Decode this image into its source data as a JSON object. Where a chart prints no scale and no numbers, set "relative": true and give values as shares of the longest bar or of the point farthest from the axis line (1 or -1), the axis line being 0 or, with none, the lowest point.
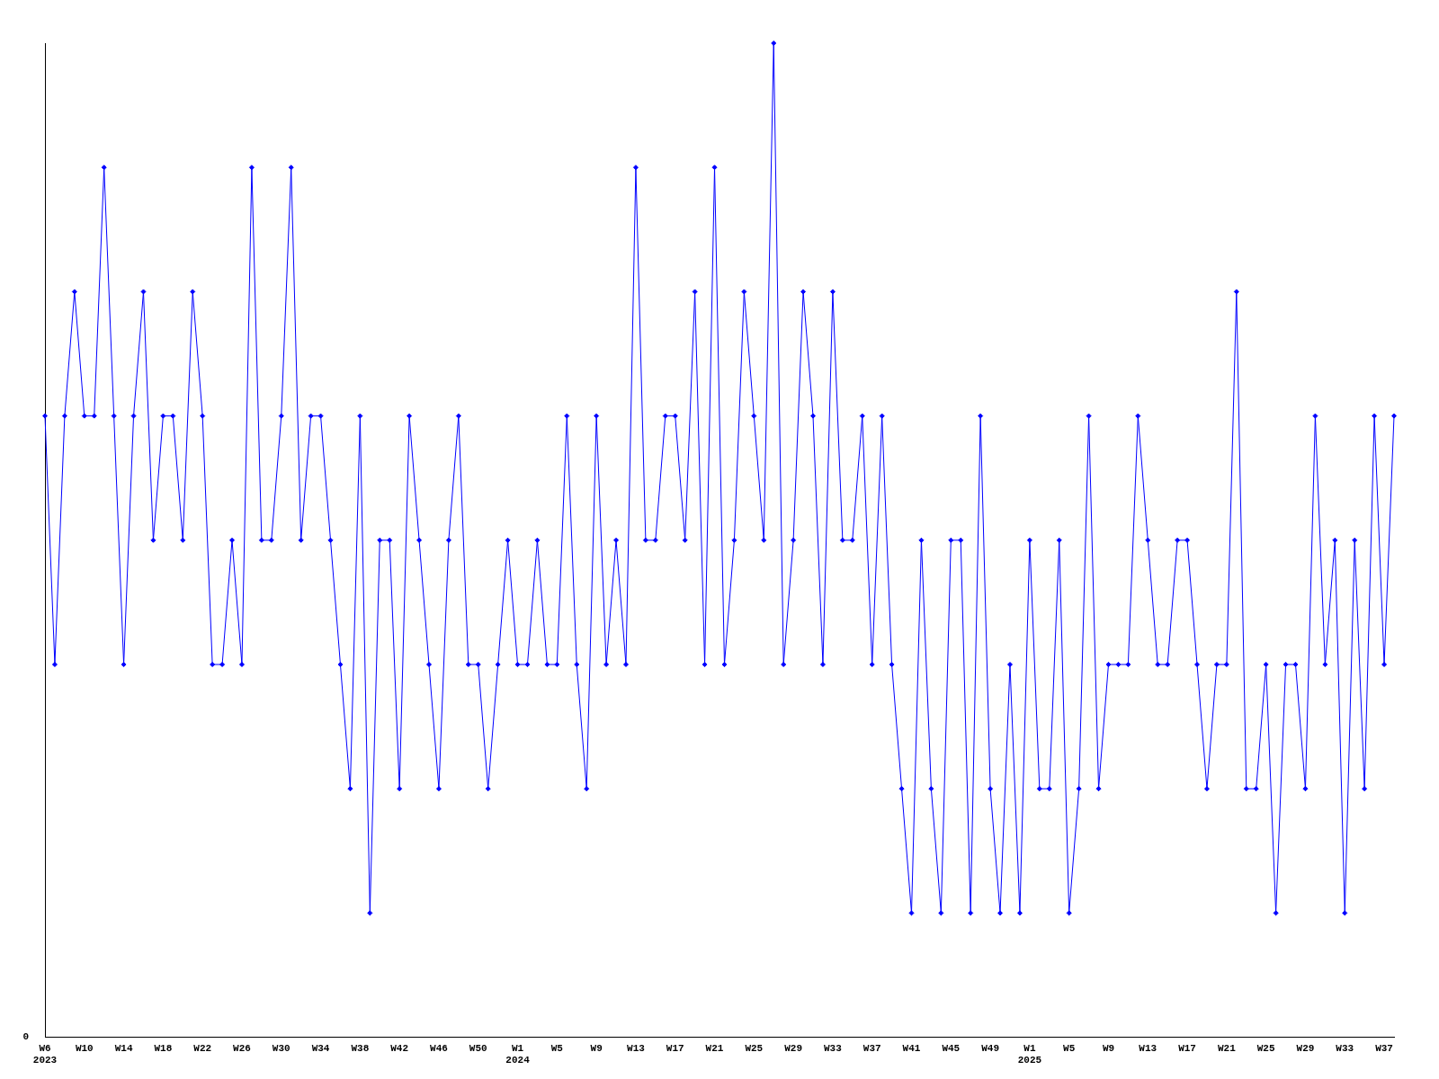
{
  "chart_data": {
    "type": "line",
    "relative": true,
    "marker": "diamond",
    "line_style": "solid",
    "grid": false,
    "legend": false,
    "annotations": [
      "0"
    ],
    "categories": [
      "W6\n2023",
      null,
      null,
      null,
      "W10",
      null,
      null,
      null,
      "W14",
      null,
      null,
      null,
      "W18",
      null,
      null,
      null,
      "W22",
      null,
      null,
      null,
      "W26",
      null,
      null,
      null,
      "W30",
      null,
      null,
      null,
      "W34",
      null,
      null,
      null,
      "W38",
      null,
      null,
      null,
      "W42",
      null,
      null,
      null,
      "W46",
      null,
      null,
      null,
      "W50",
      null,
      null,
      null,
      "W1\n2024",
      null,
      null,
      null,
      "W5",
      null,
      null,
      null,
      "W9",
      null,
      null,
      null,
      "W13",
      null,
      null,
      null,
      "W17",
      null,
      null,
      null,
      "W21",
      null,
      null,
      null,
      "W25",
      null,
      null,
      null,
      "W29",
      null,
      null,
      null,
      "W33",
      null,
      null,
      null,
      "W37",
      null,
      null,
      null,
      "W41",
      null,
      null,
      null,
      "W45",
      null,
      null,
      null,
      "W49",
      null,
      null,
      null,
      "W1\n2025",
      null,
      null,
      null,
      "W5",
      null,
      null,
      null,
      "W9",
      null,
      null,
      null,
      "W13",
      null,
      null,
      null,
      "W17",
      null,
      null,
      null,
      "W21",
      null,
      null,
      null,
      "W25",
      null,
      null,
      null,
      "W29",
      null,
      null,
      null,
      "W33",
      null,
      null,
      null,
      "W37",
      null
    ],
    "series": [
      {
        "color": "#0000ff",
        "values": [
          0.625,
          0.375,
          0.625,
          0.75,
          0.625,
          0.625,
          0.875,
          0.625,
          0.375,
          0.625,
          0.75,
          0.5,
          0.625,
          0.625,
          0.5,
          0.75,
          0.625,
          0.375,
          0.375,
          0.5,
          0.375,
          0.875,
          0.5,
          0.5,
          0.625,
          0.875,
          0.5,
          0.625,
          0.625,
          0.5,
          0.375,
          0.25,
          0.625,
          0.125,
          0.5,
          0.5,
          0.25,
          0.625,
          0.5,
          0.375,
          0.25,
          0.5,
          0.625,
          0.375,
          0.375,
          0.25,
          0.375,
          0.5,
          0.375,
          0.375,
          0.5,
          0.375,
          0.375,
          0.625,
          0.375,
          0.25,
          0.625,
          0.375,
          0.5,
          0.375,
          0.875,
          0.5,
          0.5,
          0.625,
          0.625,
          0.5,
          0.75,
          0.375,
          0.875,
          0.375,
          0.5,
          0.75,
          0.625,
          0.5,
          1,
          0.375,
          0.5,
          0.75,
          0.625,
          0.375,
          0.75,
          0.5,
          0.5,
          0.625,
          0.375,
          0.625,
          0.375,
          0.25,
          0.125,
          0.5,
          0.25,
          0.125,
          0.5,
          0.5,
          0.125,
          0.625,
          0.25,
          0.125,
          0.375,
          0.125,
          0.5,
          0.25,
          0.25,
          0.5,
          0.125,
          0.25,
          0.625,
          0.25,
          0.375,
          0.375,
          0.375,
          0.625,
          0.5,
          0.375,
          0.375,
          0.5,
          0.5,
          0.375,
          0.25,
          0.375,
          0.375,
          0.75,
          0.25,
          0.25,
          0.375,
          0.125,
          0.375,
          0.375,
          0.25,
          0.625,
          0.375,
          0.5,
          0.125,
          0.5,
          0.25,
          0.625,
          0.375,
          0.625
        ]
      }
    ]
  }
}
